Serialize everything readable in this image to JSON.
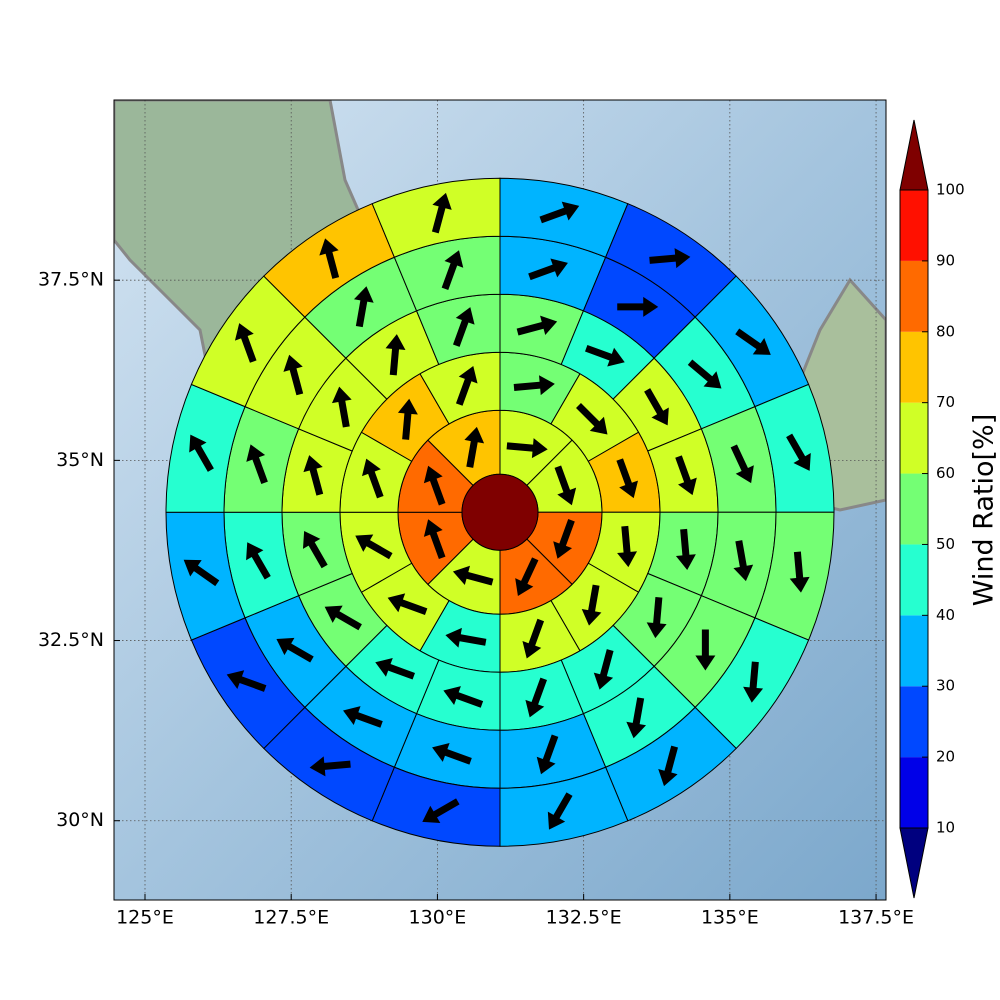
{
  "chart_data": {
    "type": "polar-sector-map",
    "xlim": [
      124.47,
      137.67
    ],
    "ylim": [
      28.9,
      40.0
    ],
    "xticks": [
      {
        "value": 125,
        "label": "125°E"
      },
      {
        "value": 127.5,
        "label": "127.5°E"
      },
      {
        "value": 130,
        "label": "130°E"
      },
      {
        "value": 132.5,
        "label": "132.5°E"
      },
      {
        "value": 135,
        "label": "135°E"
      },
      {
        "value": 137.5,
        "label": "137.5°E"
      }
    ],
    "yticks": [
      {
        "value": 30,
        "label": "30°N"
      },
      {
        "value": 32.5,
        "label": "32.5°N"
      },
      {
        "value": 35,
        "label": "35°N"
      },
      {
        "value": 37.5,
        "label": "37.5°N"
      }
    ],
    "grid": true,
    "center": {
      "lon": 131.07,
      "lat": 34.28,
      "value": 105
    },
    "rings": [
      {
        "values": [
          65,
          65,
          85,
          85,
          65,
          85,
          85,
          75
        ],
        "directions": [
          95,
          160,
          200,
          205,
          285,
          340,
          340,
          10
        ]
      },
      {
        "values": [
          55,
          65,
          75,
          65,
          65,
          65,
          45,
          65,
          65,
          65,
          75,
          65
        ],
        "directions": [
          85,
          135,
          160,
          175,
          190,
          200,
          280,
          290,
          300,
          340,
          5,
          20
        ]
      },
      {
        "values": [
          55,
          45,
          65,
          65,
          55,
          55,
          45,
          45,
          45,
          45,
          55,
          55,
          65,
          65,
          65,
          55
        ],
        "directions": [
          75,
          110,
          150,
          160,
          175,
          185,
          195,
          200,
          290,
          290,
          300,
          330,
          345,
          350,
          5,
          20
        ]
      },
      {
        "values": [
          35,
          25,
          45,
          55,
          55,
          55,
          45,
          35,
          35,
          35,
          35,
          45,
          55,
          65,
          55,
          55
        ],
        "directions": [
          70,
          90,
          130,
          155,
          170,
          180,
          190,
          200,
          290,
          290,
          300,
          330,
          340,
          345,
          10,
          20
        ]
      },
      {
        "values": [
          35,
          25,
          35,
          45,
          55,
          45,
          35,
          35,
          25,
          25,
          25,
          35,
          45,
          65,
          75,
          65
        ],
        "directions": [
          70,
          85,
          125,
          150,
          175,
          185,
          195,
          210,
          240,
          265,
          290,
          305,
          330,
          340,
          345,
          15
        ]
      }
    ],
    "colorbar": {
      "label": "Wind Ratio[%]",
      "ticks": [
        10,
        20,
        30,
        40,
        50,
        60,
        70,
        80,
        90,
        100
      ],
      "colors": [
        "#0000e8",
        "#0048ff",
        "#00b4ff",
        "#26ffd0",
        "#74ff74",
        "#d0ff26",
        "#ffc400",
        "#ff6a00",
        "#ff1000"
      ],
      "under_color": "#00007f",
      "over_color": "#7f0000"
    }
  }
}
